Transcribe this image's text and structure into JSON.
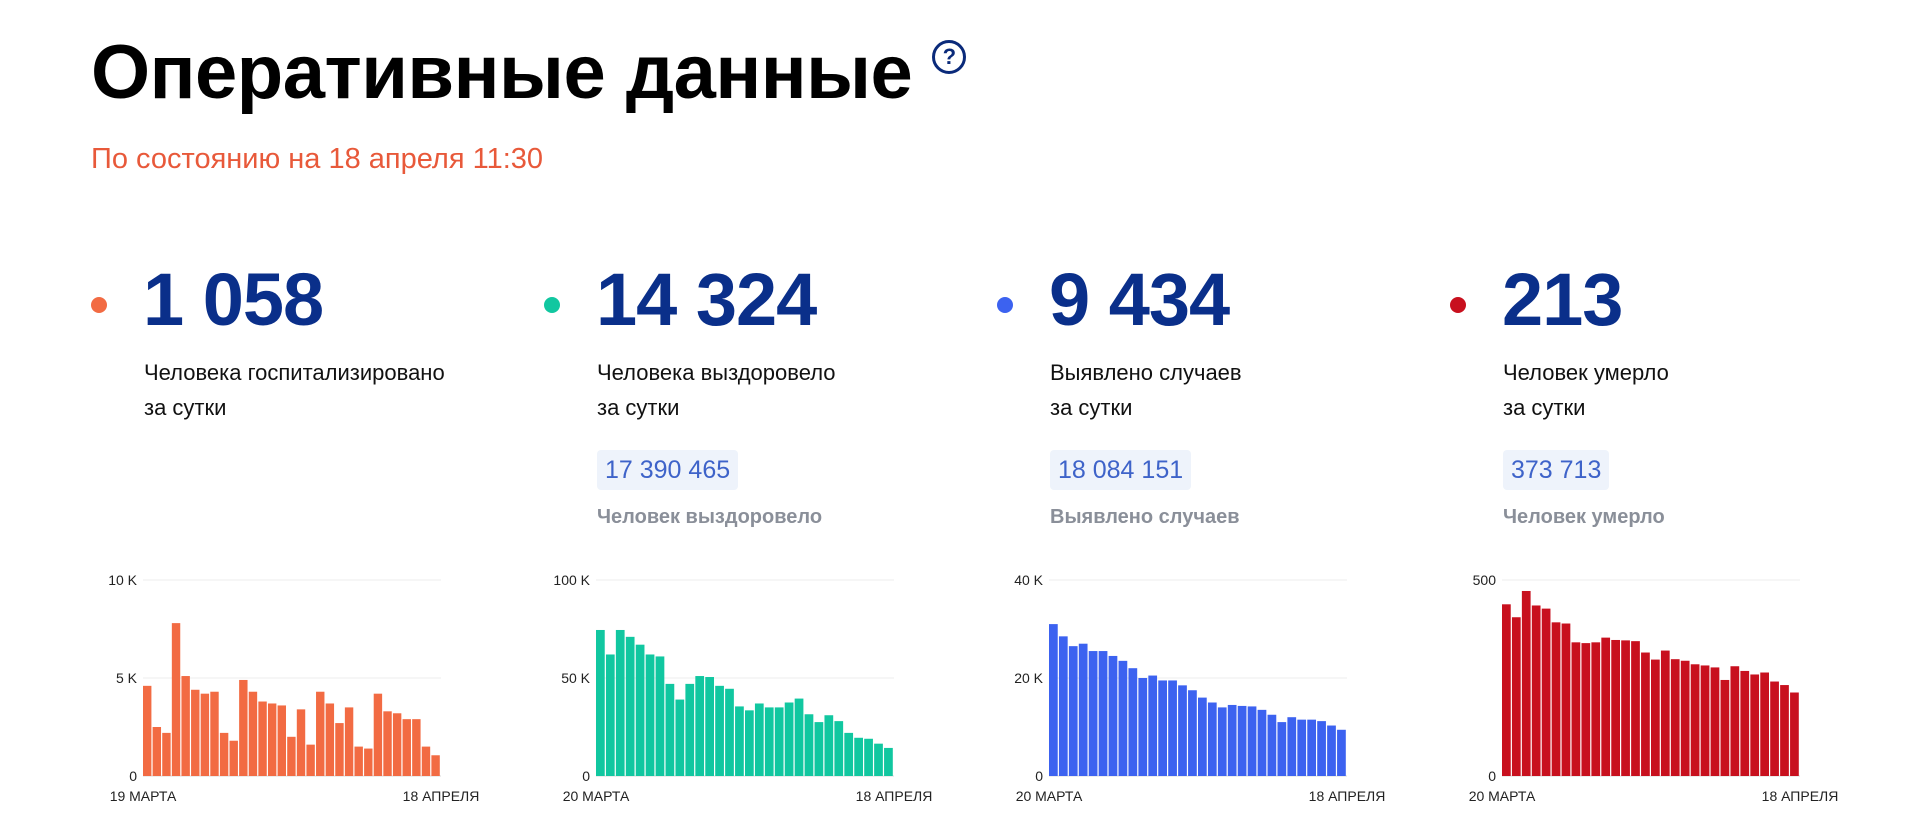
{
  "page": {
    "title": "Оперативные данные",
    "help_icon": "?",
    "subtitle": "По состоянию на 18 апреля 11:30"
  },
  "cards": [
    {
      "color": "#f26b43",
      "value": "1 058",
      "label_line1": "Человека госпитализировано",
      "label_line2": "за сутки",
      "total": "",
      "total_label": ""
    },
    {
      "color": "#11c7a0",
      "value": "14 324",
      "label_line1": "Человека выздоровело",
      "label_line2": "за сутки",
      "total": "17 390 465",
      "total_label": "Человек выздоровело"
    },
    {
      "color": "#3c62f0",
      "value": "9 434",
      "label_line1": "Выявлено случаев",
      "label_line2": "за сутки",
      "total": "18 084 151",
      "total_label": "Выявлено случаев"
    },
    {
      "color": "#c8101e",
      "value": "213",
      "label_line1": "Человек умерло",
      "label_line2": "за сутки",
      "total": "373 713",
      "total_label": "Человек умерло"
    }
  ],
  "chart_data": [
    {
      "type": "bar",
      "color": "#f26b43",
      "ylim": [
        0,
        10000
      ],
      "yticks": [
        0,
        5000,
        10000
      ],
      "ytick_labels": [
        "0",
        "5 K",
        "10 K"
      ],
      "x_start_label": "19 МАРТА",
      "x_end_label": "18 АПРЕЛЯ",
      "values": [
        4600,
        2500,
        2200,
        7800,
        5100,
        4400,
        4200,
        4300,
        2200,
        1800,
        4900,
        4300,
        3800,
        3700,
        3600,
        2000,
        3400,
        1600,
        4300,
        3700,
        2700,
        3500,
        1500,
        1400,
        4200,
        3300,
        3200,
        2900,
        2900,
        1500,
        1058
      ]
    },
    {
      "type": "bar",
      "color": "#11c7a0",
      "ylim": [
        0,
        100000
      ],
      "yticks": [
        0,
        50000,
        100000
      ],
      "ytick_labels": [
        "0",
        "50 K",
        "100 K"
      ],
      "x_start_label": "20 МАРТА",
      "x_end_label": "18 АПРЕЛЯ",
      "values": [
        74500,
        62000,
        74500,
        71000,
        67000,
        62000,
        61000,
        47000,
        39000,
        47000,
        51000,
        50500,
        46000,
        44500,
        35500,
        33500,
        37000,
        35000,
        35000,
        37500,
        39500,
        31500,
        27500,
        31000,
        28000,
        22000,
        19500,
        19000,
        16500,
        14324
      ]
    },
    {
      "type": "bar",
      "color": "#3c62f0",
      "ylim": [
        0,
        40000
      ],
      "yticks": [
        0,
        20000,
        40000
      ],
      "ytick_labels": [
        "0",
        "20 K",
        "40 K"
      ],
      "x_start_label": "20 МАРТА",
      "x_end_label": "18 АПРЕЛЯ",
      "values": [
        31000,
        28500,
        26500,
        27000,
        25500,
        25500,
        24500,
        23500,
        22000,
        20000,
        20500,
        19500,
        19500,
        18500,
        17500,
        16000,
        15000,
        14000,
        14500,
        14300,
        14200,
        13500,
        12500,
        11000,
        12000,
        11500,
        11500,
        11200,
        10300,
        9434
      ]
    },
    {
      "type": "bar",
      "color": "#c8101e",
      "ylim": [
        0,
        500
      ],
      "yticks": [
        0,
        500
      ],
      "ytick_labels": [
        "0",
        "500"
      ],
      "x_start_label": "20 МАРТА",
      "x_end_label": "18 АПРЕЛЯ",
      "values": [
        438,
        405,
        472,
        435,
        427,
        392,
        389,
        341,
        339,
        341,
        353,
        347,
        346,
        344,
        315,
        297,
        320,
        298,
        294,
        285,
        282,
        277,
        245,
        280,
        268,
        259,
        264,
        241,
        232,
        213
      ]
    }
  ]
}
